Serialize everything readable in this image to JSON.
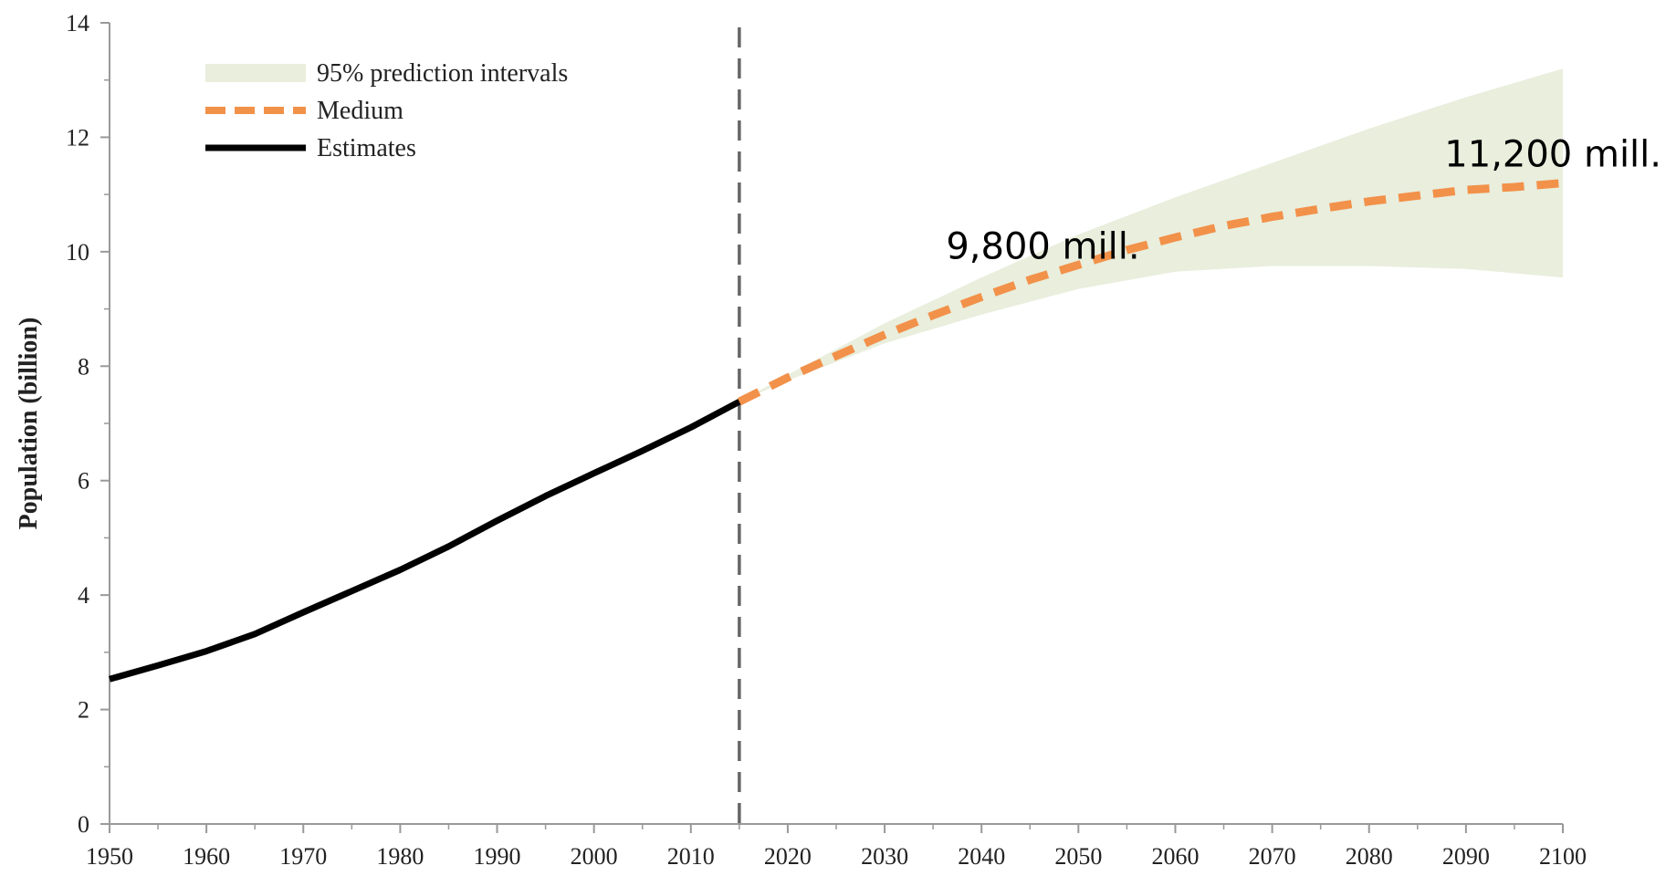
{
  "chart_data": {
    "type": "line",
    "title": "",
    "xlabel": "",
    "ylabel": "Population (billion)",
    "xlim": [
      1950,
      2100
    ],
    "ylim": [
      0,
      14
    ],
    "x_ticks": [
      1950,
      1960,
      1970,
      1980,
      1990,
      2000,
      2010,
      2020,
      2030,
      2040,
      2050,
      2060,
      2070,
      2080,
      2090,
      2100
    ],
    "y_ticks": [
      0,
      2,
      4,
      6,
      8,
      10,
      12,
      14
    ],
    "grid": false,
    "legend_position": "top-left",
    "divider_x": 2015,
    "legend": [
      {
        "label": "95% prediction intervals",
        "style": "band"
      },
      {
        "label": "Medium",
        "style": "dashed"
      },
      {
        "label": "Estimates",
        "style": "solid"
      }
    ],
    "colors": {
      "estimates": "#000000",
      "medium": "#f2914a",
      "band": "#e9eedd",
      "divider": "#666666",
      "axis": "#999999"
    },
    "series": [
      {
        "name": "Estimates",
        "x": [
          1950,
          1955,
          1960,
          1965,
          1970,
          1975,
          1980,
          1985,
          1990,
          1995,
          2000,
          2005,
          2010,
          2015
        ],
        "values": [
          2.53,
          2.77,
          3.02,
          3.32,
          3.7,
          4.07,
          4.44,
          4.85,
          5.3,
          5.73,
          6.13,
          6.52,
          6.93,
          7.38
        ]
      },
      {
        "name": "Medium",
        "x": [
          2015,
          2020,
          2025,
          2030,
          2035,
          2040,
          2045,
          2050,
          2055,
          2060,
          2065,
          2070,
          2075,
          2080,
          2085,
          2090,
          2095,
          2100
        ],
        "values": [
          7.38,
          7.8,
          8.18,
          8.55,
          8.89,
          9.21,
          9.51,
          9.77,
          10.03,
          10.25,
          10.45,
          10.61,
          10.75,
          10.88,
          10.98,
          11.08,
          11.13,
          11.2
        ]
      },
      {
        "name": "95% prediction intervals",
        "x": [
          2015,
          2020,
          2030,
          2040,
          2050,
          2060,
          2070,
          2080,
          2090,
          2100
        ],
        "lower": [
          7.38,
          7.75,
          8.4,
          8.9,
          9.35,
          9.65,
          9.75,
          9.75,
          9.7,
          9.55
        ],
        "upper": [
          7.38,
          7.85,
          8.75,
          9.55,
          10.3,
          10.95,
          11.55,
          12.15,
          12.7,
          13.2
        ]
      }
    ],
    "annotations": [
      {
        "text": "9,800 mill.",
        "x": 2050,
        "y": 9.8
      },
      {
        "text": "11,200 mill.",
        "x": 2100,
        "y": 11.2
      }
    ]
  }
}
